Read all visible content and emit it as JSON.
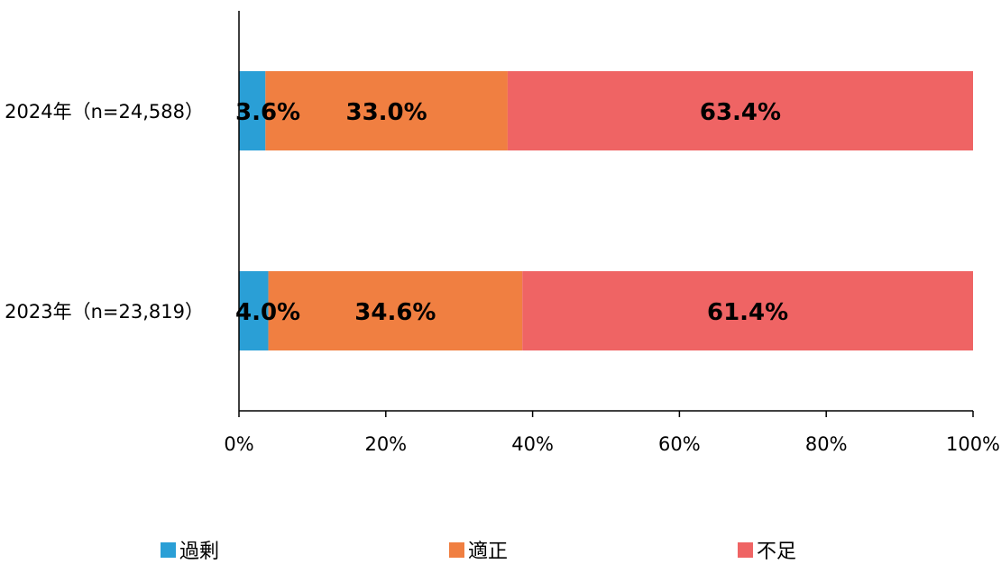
{
  "chart_data": {
    "type": "bar",
    "orientation": "horizontal",
    "stacked": true,
    "categories": [
      "2024年（n=24,588）",
      "2023年（n=23,819）"
    ],
    "series": [
      {
        "name": "過剰",
        "color": "#2a9fd6",
        "values": [
          3.6,
          4.0
        ],
        "labels": [
          "3.6%",
          "4.0%"
        ]
      },
      {
        "name": "適正",
        "color": "#f07f41",
        "values": [
          33.0,
          34.6
        ],
        "labels": [
          "33.0%",
          "34.6%"
        ]
      },
      {
        "name": "不足",
        "color": "#ef6464",
        "values": [
          63.4,
          61.4
        ],
        "labels": [
          "63.4%",
          "61.4%"
        ]
      }
    ],
    "xlim": [
      0,
      100
    ],
    "x_ticks": [
      "0%",
      "20%",
      "40%",
      "60%",
      "80%",
      "100%"
    ],
    "grid": false,
    "legend_position": "bottom"
  }
}
